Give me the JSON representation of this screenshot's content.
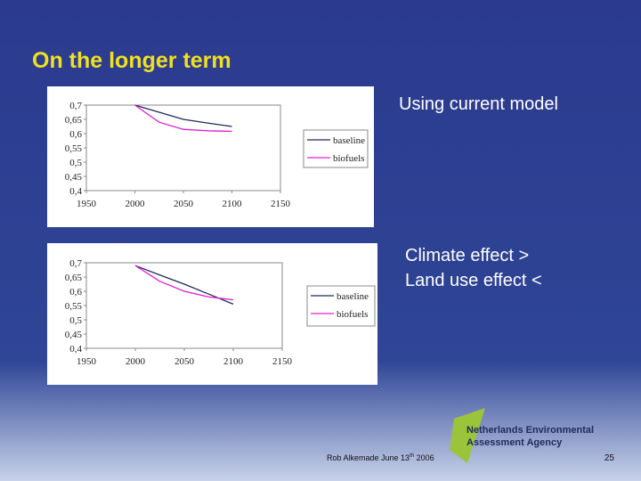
{
  "title": "On the longer term",
  "notes": [
    "Using current model",
    "Climate effect >",
    "Land use effect <"
  ],
  "chart_data": [
    {
      "type": "line",
      "x": [
        2000,
        2025,
        2050,
        2075,
        2100
      ],
      "xlim": [
        1950,
        2150
      ],
      "xticks": [
        1950,
        2000,
        2050,
        2100,
        2150
      ],
      "ylim": [
        0.4,
        0.7
      ],
      "yticks": [
        {
          "value": 0.4,
          "label": "0,4"
        },
        {
          "value": 0.45,
          "label": "0,45"
        },
        {
          "value": 0.5,
          "label": "0,5"
        },
        {
          "value": 0.55,
          "label": "0,55"
        },
        {
          "value": 0.6,
          "label": "0,6"
        },
        {
          "value": 0.65,
          "label": "0,65"
        },
        {
          "value": 0.7,
          "label": "0,7"
        }
      ],
      "legend": "right",
      "series": [
        {
          "name": "baseline",
          "color": "#1f2a5c",
          "values": [
            0.7,
            0.675,
            0.65,
            0.637,
            0.625
          ]
        },
        {
          "name": "biofuels",
          "color": "#e020d0",
          "values": [
            0.7,
            0.64,
            0.615,
            0.61,
            0.608
          ]
        }
      ]
    },
    {
      "type": "line",
      "x": [
        2000,
        2025,
        2050,
        2075,
        2100
      ],
      "xlim": [
        1950,
        2150
      ],
      "xticks": [
        1950,
        2000,
        2050,
        2100,
        2150
      ],
      "ylim": [
        0.4,
        0.7
      ],
      "yticks": [
        {
          "value": 0.4,
          "label": "0,4"
        },
        {
          "value": 0.45,
          "label": "0,45"
        },
        {
          "value": 0.5,
          "label": "0,5"
        },
        {
          "value": 0.55,
          "label": "0,55"
        },
        {
          "value": 0.6,
          "label": "0,6"
        },
        {
          "value": 0.65,
          "label": "0,65"
        },
        {
          "value": 0.7,
          "label": "0,7"
        }
      ],
      "legend": "right",
      "series": [
        {
          "name": "baseline",
          "color": "#1f2a5c",
          "values": [
            0.69,
            0.657,
            0.625,
            0.59,
            0.555
          ]
        },
        {
          "name": "biofuels",
          "color": "#e020d0",
          "values": [
            0.69,
            0.635,
            0.6,
            0.58,
            0.57
          ]
        }
      ]
    }
  ],
  "footer": {
    "author": "Rob Alkemade June 13",
    "sup": "th",
    "year": " 2006",
    "page": "25"
  },
  "logo": {
    "line1": "Netherlands Environmental",
    "line2": "Assessment Agency"
  }
}
